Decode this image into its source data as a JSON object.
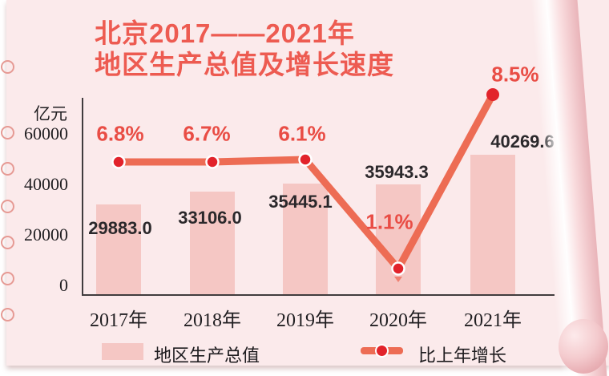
{
  "title": {
    "line1": "北京2017——2021年",
    "line2": "地区生产总值及增长速度"
  },
  "y_axis": {
    "unit": "亿元",
    "ticks": [
      "60000",
      "40000",
      "20000",
      "0"
    ]
  },
  "legend": {
    "gdp_label": "地区生产总值",
    "growth_label": "比上年增长"
  },
  "chart_data": {
    "type": "bar+line",
    "title": "北京2017——2021年地区生产总值及增长速度",
    "categories": [
      "2017年",
      "2018年",
      "2019年",
      "2020年",
      "2021年"
    ],
    "series": [
      {
        "name": "地区生产总值",
        "type": "bar",
        "unit": "亿元",
        "values": [
          29883.0,
          33106.0,
          35445.1,
          35943.3,
          40269.6
        ],
        "value_labels": [
          "29883.0",
          "33106.0",
          "35445.1",
          "35943.3",
          "40269.6"
        ]
      },
      {
        "name": "比上年增长",
        "type": "line",
        "unit": "%",
        "values": [
          6.8,
          6.7,
          6.1,
          1.1,
          8.5
        ],
        "value_labels": [
          "6.8%",
          "6.7%",
          "6.1%",
          "1.1%",
          "8.5%"
        ]
      }
    ],
    "ylabel": "亿元",
    "ylim": [
      0,
      60000
    ],
    "yticks": [
      0,
      20000,
      40000,
      60000
    ],
    "grid": false,
    "legend_position": "bottom"
  },
  "colors": {
    "paper": "#fbeaeb",
    "bar": "#f5c7c4",
    "line": "#ed6c54",
    "dot": "#e2232b",
    "percent_text": "#e94d45",
    "title_text": "#ed5b51",
    "value_text": "#2b282b",
    "axis": "#403c3e"
  }
}
